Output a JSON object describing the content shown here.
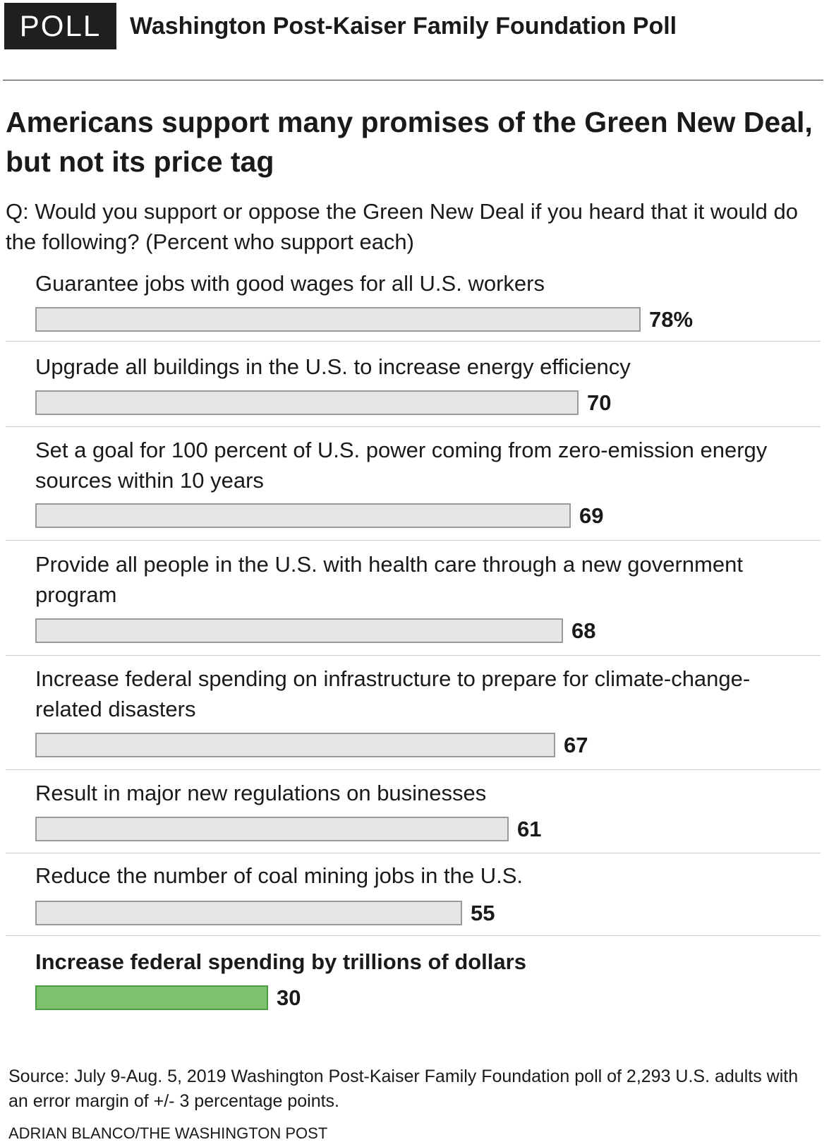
{
  "header": {
    "badge": "POLL",
    "poll_name": "Washington Post-Kaiser Family Foundation Poll"
  },
  "title": "Americans support many promises of the Green New Deal, but not its price tag",
  "subtitle": "Q: Would you support or oppose the Green New Deal if you heard that it would do the following? (Percent who support each)",
  "colors": {
    "bar_fill": "#e6e6e6",
    "bar_border": "#9a9a9a",
    "highlight_fill": "#7dc36d",
    "highlight_border": "#4d9a45"
  },
  "chart_data": {
    "type": "bar",
    "orientation": "horizontal",
    "xlim": [
      0,
      100
    ],
    "grid": false,
    "categories": [
      "Guarantee jobs with good wages for all U.S. workers",
      "Upgrade all buildings in the U.S. to increase energy efficiency",
      "Set a goal for 100 percent of U.S. power coming from zero-emission energy sources within 10 years",
      "Provide all people in the U.S. with health care through a new government program",
      "Increase federal spending on infrastructure to prepare for climate-change-related disasters",
      "Result in major new regulations on businesses",
      "Reduce the number of coal mining jobs in the U.S.",
      "Increase federal spending by trillions of dollars"
    ],
    "values": [
      78,
      70,
      69,
      68,
      67,
      61,
      55,
      30
    ],
    "value_labels": [
      "78%",
      "70",
      "69",
      "68",
      "67",
      "61",
      "55",
      "30"
    ],
    "highlighted_index": 7
  },
  "footer": {
    "source": "Source: July 9-Aug. 5, 2019 Washington Post-Kaiser Family Foundation poll of 2,293 U.S. adults with an error margin of +/- 3 percentage points.",
    "credit": "ADRIAN BLANCO/THE WASHINGTON POST"
  }
}
